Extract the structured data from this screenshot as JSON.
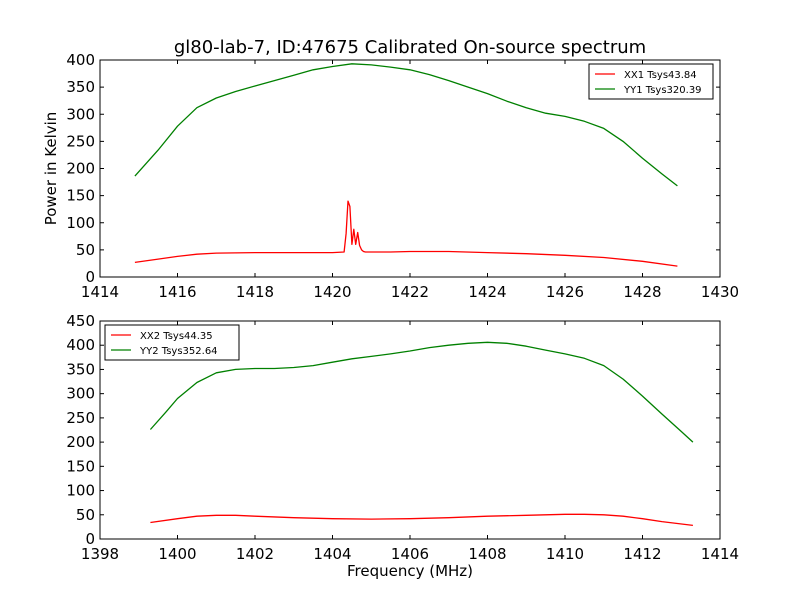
{
  "figure": {
    "title": "gl80-lab-7, ID:47675 Calibrated On-source spectrum"
  },
  "chart_data": [
    {
      "type": "line",
      "title": "gl80-lab-7, ID:47675 Calibrated On-source spectrum",
      "xlabel": "",
      "ylabel": "Power in Kelvin",
      "xlim": [
        1414,
        1430
      ],
      "ylim": [
        0,
        400
      ],
      "xticks": [
        1414,
        1416,
        1418,
        1420,
        1422,
        1424,
        1426,
        1428,
        1430
      ],
      "yticks": [
        0,
        50,
        100,
        150,
        200,
        250,
        300,
        350,
        400
      ],
      "grid": false,
      "legend": "top-right",
      "series": [
        {
          "name": "XX1 Tsys43.84",
          "color": "#ff0000",
          "x": [
            1414.9,
            1415.5,
            1416.0,
            1416.5,
            1417.0,
            1418.0,
            1419.0,
            1420.0,
            1420.3,
            1420.35,
            1420.4,
            1420.45,
            1420.5,
            1420.55,
            1420.6,
            1420.65,
            1420.7,
            1420.75,
            1420.8,
            1420.85,
            1420.9,
            1421.0,
            1421.5,
            1422.0,
            1423.0,
            1424.0,
            1425.0,
            1426.0,
            1427.0,
            1428.0,
            1428.9
          ],
          "y": [
            27,
            33,
            38,
            42,
            44,
            45,
            45,
            45,
            46,
            80,
            140,
            130,
            60,
            88,
            60,
            82,
            58,
            50,
            47,
            46,
            46,
            46,
            46,
            47,
            47,
            45,
            43,
            40,
            36,
            29,
            20
          ]
        },
        {
          "name": "YY1 Tsys320.39",
          "color": "#008000",
          "x": [
            1414.9,
            1415.5,
            1416.0,
            1416.5,
            1417.0,
            1417.5,
            1418.0,
            1418.5,
            1419.0,
            1419.5,
            1420.0,
            1420.5,
            1421.0,
            1421.5,
            1422.0,
            1422.5,
            1423.0,
            1423.5,
            1424.0,
            1424.5,
            1425.0,
            1425.5,
            1426.0,
            1426.5,
            1427.0,
            1427.5,
            1428.0,
            1428.5,
            1428.9
          ],
          "y": [
            186,
            234,
            278,
            312,
            330,
            342,
            352,
            362,
            372,
            382,
            388,
            393,
            391,
            387,
            382,
            373,
            362,
            350,
            338,
            324,
            312,
            302,
            296,
            287,
            274,
            250,
            219,
            190,
            168
          ]
        }
      ]
    },
    {
      "type": "line",
      "title": "",
      "xlabel": "Frequency (MHz)",
      "ylabel": "",
      "xlim": [
        1398,
        1414
      ],
      "ylim": [
        0,
        450
      ],
      "xticks": [
        1398,
        1400,
        1402,
        1404,
        1406,
        1408,
        1410,
        1412,
        1414
      ],
      "yticks": [
        0,
        50,
        100,
        150,
        200,
        250,
        300,
        350,
        400,
        450
      ],
      "grid": false,
      "legend": "top-left",
      "series": [
        {
          "name": "XX2 Tsys44.35",
          "color": "#ff0000",
          "x": [
            1399.3,
            1400.0,
            1400.5,
            1401.0,
            1401.5,
            1402.0,
            1403.0,
            1404.0,
            1405.0,
            1406.0,
            1407.0,
            1408.0,
            1409.0,
            1410.0,
            1410.5,
            1411.0,
            1411.5,
            1412.0,
            1412.5,
            1413.3
          ],
          "y": [
            34,
            42,
            47,
            49,
            49,
            47,
            44,
            42,
            41,
            42,
            44,
            47,
            49,
            51,
            51,
            50,
            47,
            42,
            36,
            28
          ]
        },
        {
          "name": "YY2 Tsys352.64",
          "color": "#008000",
          "x": [
            1399.3,
            1399.7,
            1400.0,
            1400.5,
            1401.0,
            1401.5,
            1402.0,
            1402.5,
            1403.0,
            1403.5,
            1404.0,
            1404.5,
            1405.0,
            1405.5,
            1406.0,
            1406.5,
            1407.0,
            1407.5,
            1408.0,
            1408.5,
            1409.0,
            1409.5,
            1410.0,
            1410.5,
            1411.0,
            1411.5,
            1412.0,
            1412.5,
            1413.0,
            1413.3
          ],
          "y": [
            226,
            262,
            290,
            323,
            343,
            350,
            352,
            352,
            354,
            358,
            365,
            372,
            377,
            382,
            388,
            395,
            400,
            404,
            406,
            404,
            398,
            390,
            382,
            373,
            358,
            330,
            295,
            258,
            222,
            200
          ]
        }
      ]
    }
  ]
}
